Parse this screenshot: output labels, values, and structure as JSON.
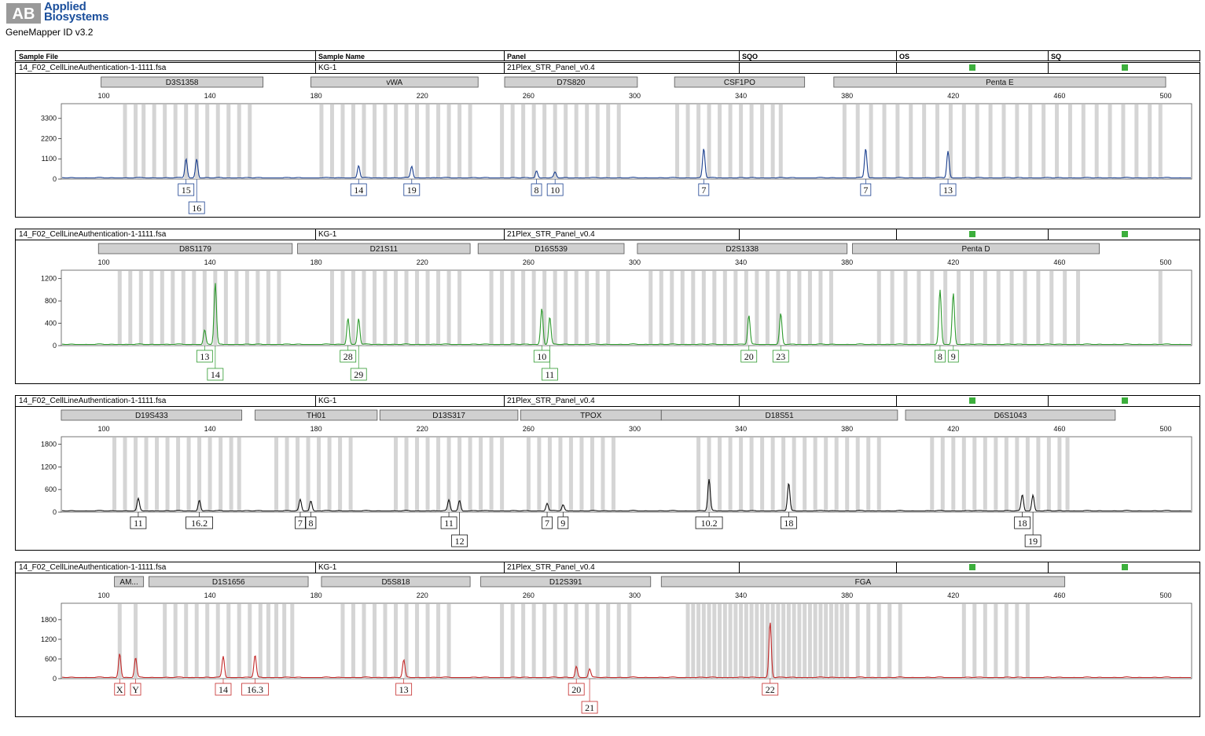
{
  "header": {
    "brand_ab": "AB",
    "brand_line1": "Applied",
    "brand_line2": "Biosystems",
    "app_title": "GeneMapper ID v3.2"
  },
  "columns": {
    "sample_file": "Sample File",
    "sample_name": "Sample Name",
    "panel": "Panel",
    "sqo": "SQO",
    "os": "OS",
    "sq": "SQ"
  },
  "colors": {
    "blue": "#1a3f8f",
    "green": "#2e9a2e",
    "black": "#111111",
    "red": "#c42a2a",
    "flag": "#3caf3c",
    "bin": "#d5d5d5",
    "marker": "#d0d0d0"
  },
  "chart_data": [
    {
      "type": "line",
      "dye": "blue",
      "sample_file": "14_F02_CellLineAuthentication-1-1111.fsa",
      "sample_name": "KG-1",
      "panel": "21Plex_STR_Panel_v0.4",
      "x_ticks": [
        100,
        140,
        180,
        220,
        260,
        300,
        340,
        380,
        420,
        460,
        500
      ],
      "xlim": [
        100,
        500
      ],
      "y_ticks": [
        0,
        1100,
        2200,
        3300
      ],
      "ylim": [
        0,
        4100
      ],
      "markers": [
        {
          "name": "D3S1358",
          "start": 99,
          "end": 160
        },
        {
          "name": "vWA",
          "start": 178,
          "end": 241
        },
        {
          "name": "D7S820",
          "start": 251,
          "end": 301
        },
        {
          "name": "CSF1PO",
          "start": 315,
          "end": 364
        },
        {
          "name": "Penta E",
          "start": 375,
          "end": 500
        }
      ],
      "peaks": [
        {
          "x": 131,
          "y": 1050,
          "label": "15",
          "row": 0
        },
        {
          "x": 135,
          "y": 1050,
          "label": "16",
          "row": 1
        },
        {
          "x": 196,
          "y": 680,
          "label": "14",
          "row": 0
        },
        {
          "x": 216,
          "y": 640,
          "label": "19",
          "row": 0
        },
        {
          "x": 263,
          "y": 400,
          "label": "8",
          "row": 0
        },
        {
          "x": 270,
          "y": 300,
          "label": "10",
          "row": 0
        },
        {
          "x": 326,
          "y": 1600,
          "label": "7",
          "row": 0
        },
        {
          "x": 387,
          "y": 1600,
          "label": "7",
          "row": 0
        },
        {
          "x": 418,
          "y": 1480,
          "label": "13",
          "row": 0
        }
      ],
      "bins": [
        108,
        112,
        115,
        119,
        123,
        127,
        131,
        135,
        139,
        143,
        147,
        151,
        155,
        182,
        186,
        190,
        194,
        198,
        202,
        206,
        210,
        214,
        218,
        222,
        226,
        230,
        234,
        238,
        250,
        254,
        258,
        262,
        266,
        270,
        274,
        278,
        282,
        286,
        290,
        294,
        316,
        320,
        324,
        328,
        332,
        336,
        340,
        344,
        348,
        352,
        355,
        379,
        384,
        389,
        394,
        399,
        404,
        409,
        414,
        419,
        424,
        429,
        434,
        439,
        444,
        449,
        454,
        459,
        464,
        469,
        474,
        479,
        484,
        489,
        494,
        498
      ]
    },
    {
      "type": "line",
      "dye": "green",
      "sample_file": "14_F02_CellLineAuthentication-1-1111.fsa",
      "sample_name": "KG-1",
      "panel": "21Plex_STR_Panel_v0.4",
      "x_ticks": [
        100,
        140,
        180,
        220,
        260,
        300,
        340,
        380,
        420,
        460,
        500
      ],
      "xlim": [
        100,
        500
      ],
      "y_ticks": [
        0,
        400,
        800,
        1200
      ],
      "ylim": [
        0,
        1350
      ],
      "markers": [
        {
          "name": "D8S1179",
          "start": 98,
          "end": 171
        },
        {
          "name": "D21S11",
          "start": 173,
          "end": 238
        },
        {
          "name": "D16S539",
          "start": 241,
          "end": 296
        },
        {
          "name": "D2S1338",
          "start": 301,
          "end": 380
        },
        {
          "name": "Penta D",
          "start": 382,
          "end": 475
        }
      ],
      "peaks": [
        {
          "x": 138,
          "y": 260,
          "label": "13",
          "row": 0
        },
        {
          "x": 142,
          "y": 1100,
          "label": "14",
          "row": 1
        },
        {
          "x": 192,
          "y": 480,
          "label": "28",
          "row": 0
        },
        {
          "x": 196,
          "y": 470,
          "label": "29",
          "row": 1
        },
        {
          "x": 265,
          "y": 650,
          "label": "10",
          "row": 0
        },
        {
          "x": 268,
          "y": 490,
          "label": "11",
          "row": 1
        },
        {
          "x": 343,
          "y": 520,
          "label": "20",
          "row": 0
        },
        {
          "x": 355,
          "y": 550,
          "label": "23",
          "row": 0
        },
        {
          "x": 415,
          "y": 970,
          "label": "8",
          "row": 0
        },
        {
          "x": 420,
          "y": 920,
          "label": "9",
          "row": 0
        }
      ],
      "bins": [
        106,
        110,
        114,
        118,
        122,
        126,
        130,
        134,
        138,
        142,
        146,
        150,
        154,
        158,
        162,
        166,
        186,
        190,
        194,
        198,
        202,
        206,
        210,
        214,
        218,
        222,
        226,
        230,
        234,
        246,
        250,
        254,
        258,
        262,
        266,
        270,
        274,
        278,
        282,
        286,
        290,
        306,
        310,
        314,
        318,
        322,
        326,
        330,
        334,
        338,
        342,
        346,
        350,
        354,
        358,
        362,
        366,
        370,
        374,
        392,
        397,
        402,
        407,
        412,
        417,
        422,
        427,
        432,
        437,
        442,
        447,
        452,
        457,
        462,
        467,
        498
      ]
    },
    {
      "type": "line",
      "dye": "black",
      "sample_file": "14_F02_CellLineAuthentication-1-1111.fsa",
      "sample_name": "KG-1",
      "panel": "21Plex_STR_Panel_v0.4",
      "x_ticks": [
        100,
        140,
        180,
        220,
        260,
        300,
        340,
        380,
        420,
        460,
        500
      ],
      "xlim": [
        100,
        500
      ],
      "y_ticks": [
        0,
        600,
        1200,
        1800
      ],
      "ylim": [
        0,
        2000
      ],
      "markers": [
        {
          "name": "D19S433",
          "start": 84,
          "end": 152
        },
        {
          "name": "TH01",
          "start": 157,
          "end": 203
        },
        {
          "name": "D13S317",
          "start": 204,
          "end": 256
        },
        {
          "name": "TPOX",
          "start": 257,
          "end": 310
        },
        {
          "name": "D18S51",
          "start": 310,
          "end": 399
        },
        {
          "name": "D6S1043",
          "start": 402,
          "end": 481
        }
      ],
      "peaks": [
        {
          "x": 113,
          "y": 320,
          "label": "11",
          "row": 0
        },
        {
          "x": 136,
          "y": 300,
          "label": "16.2",
          "row": 0
        },
        {
          "x": 174,
          "y": 300,
          "label": "7",
          "row": 0
        },
        {
          "x": 178,
          "y": 270,
          "label": "8",
          "row": 0
        },
        {
          "x": 230,
          "y": 290,
          "label": "11",
          "row": 0
        },
        {
          "x": 234,
          "y": 280,
          "label": "12",
          "row": 1
        },
        {
          "x": 267,
          "y": 210,
          "label": "7",
          "row": 0
        },
        {
          "x": 273,
          "y": 160,
          "label": "9",
          "row": 0
        },
        {
          "x": 328,
          "y": 840,
          "label": "10.2",
          "row": 0
        },
        {
          "x": 358,
          "y": 740,
          "label": "18",
          "row": 0
        },
        {
          "x": 446,
          "y": 430,
          "label": "18",
          "row": 0
        },
        {
          "x": 450,
          "y": 420,
          "label": "19",
          "row": 1
        }
      ],
      "bins": [
        104,
        108,
        112,
        116,
        120,
        124,
        128,
        132,
        136,
        140,
        144,
        148,
        151,
        165,
        169,
        173,
        177,
        181,
        185,
        189,
        193,
        210,
        214,
        218,
        222,
        226,
        230,
        234,
        238,
        242,
        246,
        250,
        260,
        264,
        268,
        272,
        276,
        280,
        284,
        288,
        292,
        324,
        328,
        332,
        336,
        340,
        344,
        348,
        352,
        356,
        360,
        364,
        368,
        372,
        376,
        380,
        384,
        388,
        392,
        412,
        416,
        420,
        424,
        428,
        432,
        436,
        440,
        444,
        448,
        452,
        456,
        460,
        463
      ]
    },
    {
      "type": "line",
      "dye": "red",
      "sample_file": "14_F02_CellLineAuthentication-1-1111.fsa",
      "sample_name": "KG-1",
      "panel": "21Plex_STR_Panel_v0.4",
      "x_ticks": [
        100,
        140,
        180,
        220,
        260,
        300,
        340,
        380,
        420,
        460,
        500
      ],
      "xlim": [
        100,
        500
      ],
      "y_ticks": [
        0,
        600,
        1200,
        1800
      ],
      "ylim": [
        0,
        2300
      ],
      "markers": [
        {
          "name": "AM...",
          "start": 104,
          "end": 115
        },
        {
          "name": "D1S1656",
          "start": 117,
          "end": 177
        },
        {
          "name": "D5S818",
          "start": 182,
          "end": 238
        },
        {
          "name": "D12S391",
          "start": 242,
          "end": 306
        },
        {
          "name": "FGA",
          "start": 310,
          "end": 462
        }
      ],
      "peaks": [
        {
          "x": 106,
          "y": 750,
          "label": "X",
          "row": 0
        },
        {
          "x": 112,
          "y": 600,
          "label": "Y",
          "row": 0
        },
        {
          "x": 145,
          "y": 650,
          "label": "14",
          "row": 0
        },
        {
          "x": 157,
          "y": 680,
          "label": "16.3",
          "row": 0
        },
        {
          "x": 213,
          "y": 530,
          "label": "13",
          "row": 0
        },
        {
          "x": 278,
          "y": 350,
          "label": "20",
          "row": 0
        },
        {
          "x": 283,
          "y": 260,
          "label": "21",
          "row": 1
        },
        {
          "x": 351,
          "y": 1700,
          "label": "22",
          "row": 0
        }
      ],
      "bins": [
        106,
        112,
        123,
        127,
        131,
        135,
        139,
        143,
        147,
        151,
        155,
        159,
        162,
        165,
        168,
        171,
        190,
        194,
        198,
        202,
        206,
        210,
        214,
        218,
        222,
        226,
        230,
        250,
        254,
        258,
        262,
        266,
        270,
        274,
        278,
        282,
        286,
        290,
        294,
        298,
        320,
        322,
        324,
        326,
        328,
        330,
        332,
        334,
        336,
        338,
        340,
        342,
        344,
        346,
        348,
        350,
        352,
        354,
        356,
        358,
        360,
        362,
        364,
        366,
        368,
        370,
        372,
        374,
        376,
        378,
        380,
        384,
        388,
        392,
        396,
        400,
        424,
        428,
        432,
        436,
        440,
        444,
        448
      ]
    }
  ]
}
